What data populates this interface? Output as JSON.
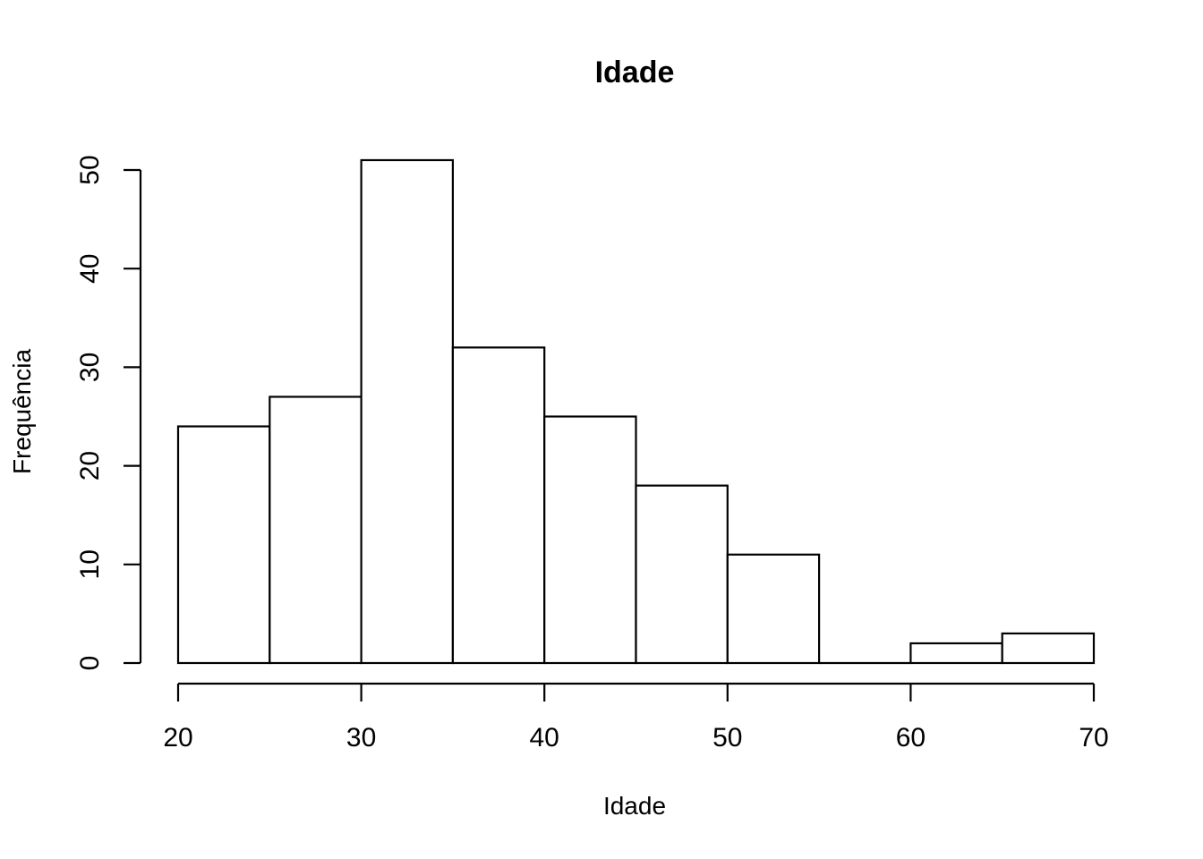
{
  "chart_data": {
    "type": "bar",
    "title": "Idade",
    "xlabel": "Idade",
    "ylabel": "Frequência",
    "bins": [
      {
        "start": 20,
        "end": 25,
        "count": 24
      },
      {
        "start": 25,
        "end": 30,
        "count": 27
      },
      {
        "start": 30,
        "end": 35,
        "count": 51
      },
      {
        "start": 35,
        "end": 40,
        "count": 32
      },
      {
        "start": 40,
        "end": 45,
        "count": 25
      },
      {
        "start": 45,
        "end": 50,
        "count": 18
      },
      {
        "start": 50,
        "end": 55,
        "count": 11
      },
      {
        "start": 55,
        "end": 60,
        "count": 0
      },
      {
        "start": 60,
        "end": 65,
        "count": 2
      },
      {
        "start": 65,
        "end": 70,
        "count": 3
      }
    ],
    "xlim": [
      20,
      70
    ],
    "ylim": [
      0,
      50
    ],
    "x_ticks": [
      "20",
      "30",
      "40",
      "50",
      "60",
      "70"
    ],
    "y_ticks": [
      "0",
      "10",
      "20",
      "30",
      "40",
      "50"
    ],
    "grid": false,
    "legend": "none"
  }
}
